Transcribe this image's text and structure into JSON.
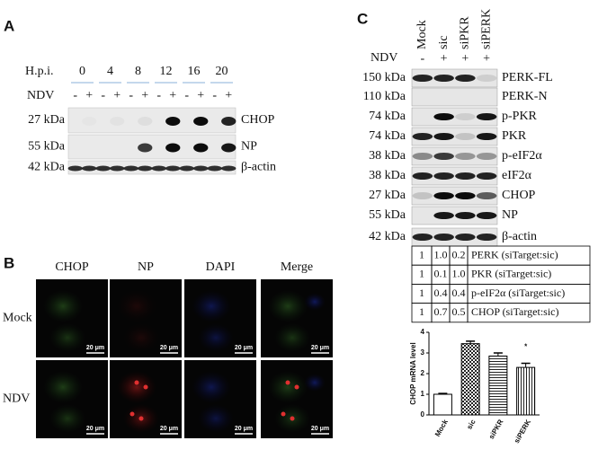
{
  "panel_a": {
    "label": "A",
    "hpi_label": "H.p.i.",
    "timepoints": [
      "0",
      "4",
      "8",
      "12",
      "16",
      "20"
    ],
    "ndv_label": "NDV",
    "ndv_signs": [
      "-",
      "+",
      "-",
      "+",
      "-",
      "+",
      "-",
      "+",
      "-",
      "+",
      "-",
      "+"
    ],
    "rows": [
      {
        "kda": "27 kDa",
        "name": "CHOP"
      },
      {
        "kda": "55 kDa",
        "name": "NP"
      },
      {
        "kda": "42 kDa",
        "name": "β-actin"
      }
    ]
  },
  "panel_b": {
    "label": "B",
    "columns": [
      "CHOP",
      "NP",
      "DAPI",
      "Merge"
    ],
    "rows": [
      "Mock",
      "NDV"
    ],
    "scale_bar": "20 μm"
  },
  "panel_c": {
    "label": "C",
    "conditions": [
      "Mock",
      "sic",
      "siPKR",
      "siPERK"
    ],
    "ndv_label": "NDV",
    "ndv_signs": [
      "-",
      "+",
      "+",
      "+"
    ],
    "rows": [
      {
        "kda": "150 kDa",
        "name": "PERK-FL"
      },
      {
        "kda": "110 kDa",
        "name": "PERK-N"
      },
      {
        "kda": "74 kDa",
        "name": "p-PKR"
      },
      {
        "kda": "74 kDa",
        "name": "PKR"
      },
      {
        "kda": "38 kDa",
        "name": "p-eIF2α"
      },
      {
        "kda": "38 kDa",
        "name": "eIF2α"
      },
      {
        "kda": "27 kDa",
        "name": "CHOP"
      },
      {
        "kda": "55 kDa",
        "name": "NP"
      },
      {
        "kda": "42 kDa",
        "name": "β-actin"
      }
    ],
    "table": [
      [
        "1",
        "1.0",
        "0.2",
        "PERK (siTarget:sic)"
      ],
      [
        "1",
        "0.1",
        "1.0",
        "PKR (siTarget:sic)"
      ],
      [
        "1",
        "0.4",
        "0.4",
        "p-eIF2α (siTarget:sic)"
      ],
      [
        "1",
        "0.7",
        "0.5",
        "CHOP (siTarget:sic)"
      ]
    ]
  },
  "chart_data": {
    "type": "bar",
    "y_label": "CHOP mRNA level",
    "categories": [
      "Mock",
      "sic",
      "siPKR",
      "siPERK"
    ],
    "values": [
      1.0,
      3.45,
      2.85,
      2.3
    ],
    "errors": [
      0.04,
      0.12,
      0.15,
      0.2
    ],
    "color": "#000000",
    "ylim": [
      0,
      4
    ],
    "yticks": [
      0,
      1,
      2,
      3,
      4
    ],
    "annotation": "*"
  }
}
